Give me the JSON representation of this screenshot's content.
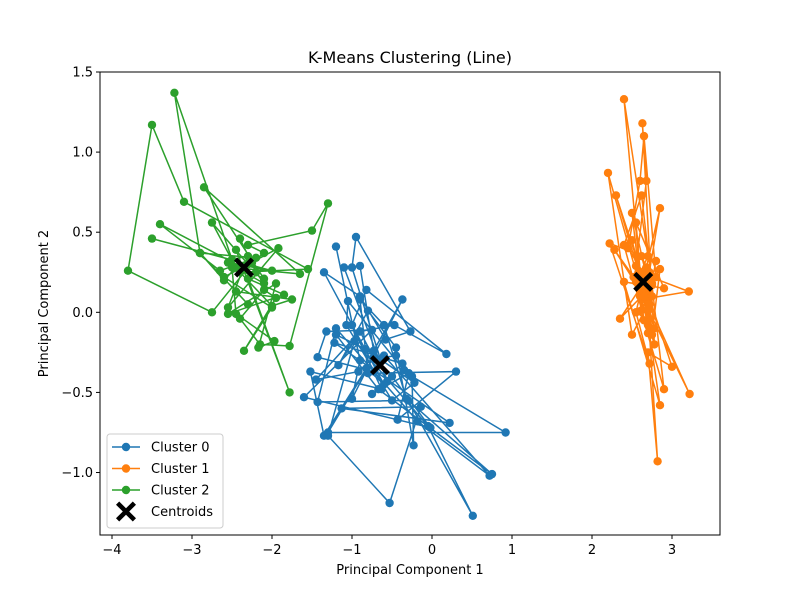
{
  "chart_data": {
    "type": "line",
    "title": "K-Means Clustering (Line)",
    "xlabel": "Principal Component 1",
    "ylabel": "Principal Component 2",
    "xlim": [
      -4.15,
      3.6
    ],
    "ylim": [
      -1.39,
      1.5
    ],
    "xticks": [
      -4,
      -3,
      -2,
      -1,
      0,
      1,
      2,
      3
    ],
    "yticks": [
      -1.0,
      -0.5,
      0.0,
      0.5,
      1.0,
      1.5
    ],
    "xtick_labels": [
      "−4",
      "−3",
      "−2",
      "−1",
      "0",
      "1",
      "2",
      "3"
    ],
    "ytick_labels": [
      "−1.0",
      "−0.5",
      "0.0",
      "0.5",
      "1.0",
      "1.5"
    ],
    "grid": false,
    "legend_position": "lower-left",
    "series": [
      {
        "name": "Cluster 0",
        "color": "#1f77b4",
        "points": [
          [
            -1.2,
            0.41
          ],
          [
            -0.9,
            -0.3
          ],
          [
            -1.0,
            -0.54
          ],
          [
            -0.37,
            0.08
          ],
          [
            -0.73,
            -0.24
          ],
          [
            -0.9,
            0.29
          ],
          [
            -1.1,
            0.28
          ],
          [
            -0.56,
            -0.43
          ],
          [
            -1.0,
            0.28
          ],
          [
            -0.95,
            0.47
          ],
          [
            -0.27,
            -0.12
          ],
          [
            -0.58,
            -0.17
          ],
          [
            -0.9,
            0.1
          ],
          [
            -1.35,
            0.25
          ],
          [
            -0.6,
            -0.45
          ],
          [
            -0.82,
            -0.35
          ],
          [
            -1.35,
            -0.77
          ],
          [
            -1.52,
            -0.37
          ],
          [
            -0.63,
            -0.48
          ],
          [
            -1.0,
            -0.08
          ],
          [
            -0.82,
            0.14
          ],
          [
            0.18,
            -0.26
          ],
          [
            -0.47,
            -0.08
          ],
          [
            -0.9,
            -0.12
          ],
          [
            -1.45,
            -0.42
          ],
          [
            -0.92,
            -0.37
          ],
          [
            -0.73,
            -0.28
          ],
          [
            -1.3,
            -0.75
          ],
          [
            0.92,
            -0.75
          ],
          [
            -0.25,
            -0.4
          ],
          [
            -0.23,
            -0.83
          ],
          [
            -0.45,
            -0.22
          ],
          [
            -0.8,
            0.01
          ],
          [
            -1.17,
            -0.33
          ],
          [
            -0.9,
            -0.12
          ],
          [
            -0.72,
            -0.29
          ],
          [
            -0.45,
            -0.27
          ],
          [
            -0.35,
            -0.36
          ],
          [
            -1.05,
            0.07
          ],
          [
            -1.07,
            -0.08
          ],
          [
            -0.5,
            -0.55
          ],
          [
            -0.22,
            -0.44
          ],
          [
            -0.83,
            -0.23
          ],
          [
            -1.2,
            -0.14
          ],
          [
            -0.67,
            -0.48
          ],
          [
            0.75,
            -1.01
          ],
          [
            -0.32,
            -0.54
          ],
          [
            -0.6,
            -0.08
          ],
          [
            -0.9,
            0.08
          ],
          [
            -0.8,
            -0.38
          ],
          [
            0.3,
            -0.37
          ],
          [
            -0.43,
            -0.67
          ],
          [
            -0.29,
            -0.38
          ],
          [
            -0.75,
            -0.51
          ],
          [
            -0.37,
            -0.32
          ],
          [
            -1.22,
            -0.19
          ],
          [
            0.22,
            -0.69
          ],
          [
            -1.13,
            -0.6
          ],
          [
            -0.14,
            -0.59
          ],
          [
            -0.53,
            -1.19
          ],
          [
            -1.3,
            -0.77
          ],
          [
            -0.97,
            -0.18
          ],
          [
            -0.05,
            -0.71
          ],
          [
            0.51,
            -1.27
          ],
          [
            -0.3,
            -0.55
          ],
          [
            -1.43,
            -0.56
          ],
          [
            -1.2,
            -0.1
          ],
          [
            -0.18,
            -0.68
          ],
          [
            0.72,
            -1.02
          ],
          [
            -0.6,
            -0.27
          ],
          [
            -0.72,
            -0.37
          ],
          [
            -1.43,
            -0.28
          ],
          [
            -1.32,
            -0.12
          ],
          [
            -0.75,
            -0.11
          ],
          [
            -1.6,
            -0.53
          ],
          [
            -0.02,
            -0.72
          ],
          [
            -0.5,
            -0.4
          ]
        ]
      },
      {
        "name": "Cluster 1",
        "color": "#ff7f0e",
        "points": [
          [
            2.6,
            0.13
          ],
          [
            2.7,
            -0.08
          ],
          [
            2.65,
            0.12
          ],
          [
            2.8,
            0.22
          ],
          [
            2.65,
            1.1
          ],
          [
            2.6,
            0.82
          ],
          [
            2.45,
            0.4
          ],
          [
            2.7,
            0.2
          ],
          [
            2.85,
            0.65
          ],
          [
            2.55,
            0.0
          ],
          [
            2.7,
            -0.05
          ],
          [
            2.62,
            0.15
          ],
          [
            2.55,
            0.56
          ],
          [
            2.9,
            0.15
          ],
          [
            2.4,
            0.19
          ],
          [
            2.85,
            -0.58
          ],
          [
            2.65,
            0.1
          ],
          [
            2.75,
            0.18
          ],
          [
            2.7,
            0.01
          ],
          [
            2.78,
            -0.1
          ],
          [
            2.5,
            0.45
          ],
          [
            2.58,
            0.25
          ],
          [
            3.21,
            0.13
          ],
          [
            2.62,
            0.08
          ],
          [
            2.6,
            0.14
          ],
          [
            2.75,
            0.17
          ],
          [
            2.7,
            0.09
          ],
          [
            2.61,
            0.01
          ],
          [
            2.9,
            -0.48
          ],
          [
            2.62,
            0.73
          ],
          [
            2.4,
            0.42
          ],
          [
            2.7,
            -0.13
          ],
          [
            2.52,
            0.22
          ],
          [
            2.68,
            0.12
          ],
          [
            2.65,
            0.22
          ],
          [
            2.55,
            0.0
          ],
          [
            2.72,
            -0.32
          ],
          [
            2.22,
            0.43
          ],
          [
            2.8,
            0.32
          ],
          [
            2.7,
            0.07
          ],
          [
            2.6,
            0.15
          ],
          [
            2.35,
            -0.04
          ],
          [
            2.62,
            0.1
          ],
          [
            2.5,
            0.62
          ],
          [
            2.67,
            0.25
          ],
          [
            2.82,
            -0.93
          ],
          [
            2.7,
            -0.25
          ],
          [
            3.0,
            -0.34
          ],
          [
            2.3,
            0.73
          ],
          [
            2.7,
            0.05
          ],
          [
            2.55,
            0.29
          ],
          [
            2.68,
            0.82
          ],
          [
            2.63,
            1.18
          ],
          [
            2.78,
            -0.2
          ],
          [
            2.6,
            0.1
          ],
          [
            2.65,
            -0.05
          ],
          [
            2.55,
            0.19
          ],
          [
            2.7,
            0.35
          ],
          [
            2.4,
            1.33
          ],
          [
            2.62,
            0.13
          ],
          [
            2.2,
            0.87
          ],
          [
            2.5,
            -0.14
          ],
          [
            2.75,
            0.1
          ],
          [
            2.62,
            0.35
          ],
          [
            2.68,
            0.28
          ],
          [
            2.72,
            0.05
          ],
          [
            2.6,
            0.17
          ],
          [
            3.22,
            -0.51
          ],
          [
            2.7,
            0.02
          ],
          [
            2.75,
            -0.14
          ],
          [
            2.85,
            0.27
          ],
          [
            2.65,
            0.1
          ],
          [
            2.28,
            0.39
          ],
          [
            2.58,
            0.18
          ],
          [
            2.72,
            0.25
          ]
        ]
      },
      {
        "name": "Cluster 2",
        "color": "#2ca02c",
        "points": [
          [
            -2.4,
            0.46
          ],
          [
            -2.2,
            0.25
          ],
          [
            -2.1,
            0.18
          ],
          [
            -2.55,
            0.31
          ],
          [
            -2.0,
            0.26
          ],
          [
            -3.5,
            0.46
          ],
          [
            -2.3,
            0.3
          ],
          [
            -2.75,
            0.56
          ],
          [
            -2.45,
            0.28
          ],
          [
            -2.6,
            0.2
          ],
          [
            -2.9,
            0.37
          ],
          [
            -2.3,
            0.05
          ],
          [
            -2.45,
            0.13
          ],
          [
            -1.75,
            0.08
          ],
          [
            -2.0,
            0.04
          ],
          [
            -2.4,
            0.25
          ],
          [
            -1.55,
            0.27
          ],
          [
            -3.1,
            0.69
          ],
          [
            -3.5,
            1.17
          ],
          [
            -3.8,
            0.26
          ],
          [
            -2.75,
            0.0
          ],
          [
            -2.25,
            0.31
          ],
          [
            -2.1,
            0.37
          ],
          [
            -2.3,
            0.42
          ],
          [
            -1.5,
            0.51
          ],
          [
            -1.3,
            0.68
          ],
          [
            -1.78,
            -0.21
          ],
          [
            -2.15,
            -0.2
          ],
          [
            -2.4,
            -0.04
          ],
          [
            -2.1,
            0.14
          ],
          [
            -1.95,
            0.09
          ],
          [
            -2.35,
            -0.24
          ],
          [
            -2.0,
            0.03
          ],
          [
            -2.6,
            0.22
          ],
          [
            -1.92,
            0.4
          ],
          [
            -2.55,
            0.03
          ],
          [
            -2.3,
            0.35
          ],
          [
            -2.5,
            0.33
          ],
          [
            -3.22,
            1.37
          ],
          [
            -2.9,
            0.37
          ],
          [
            -2.2,
            0.34
          ],
          [
            -2.65,
            0.26
          ],
          [
            -3.4,
            0.55
          ],
          [
            -2.1,
            0.21
          ],
          [
            -2.85,
            0.78
          ],
          [
            -1.65,
            0.24
          ],
          [
            -2.5,
            0.28
          ],
          [
            -2.45,
            -0.01
          ],
          [
            -1.97,
            -0.18
          ],
          [
            -2.17,
            -0.22
          ],
          [
            -1.95,
            0.18
          ],
          [
            -2.55,
            -0.01
          ],
          [
            -1.85,
            0.11
          ],
          [
            -2.3,
            0.21
          ],
          [
            -1.78,
            -0.5
          ],
          [
            -2.45,
            0.39
          ]
        ]
      },
      {
        "name": "Centroids",
        "color": "#000000",
        "marker": "X",
        "points": [
          [
            -0.65,
            -0.33
          ],
          [
            2.64,
            0.19
          ],
          [
            -2.35,
            0.28
          ]
        ]
      }
    ]
  }
}
